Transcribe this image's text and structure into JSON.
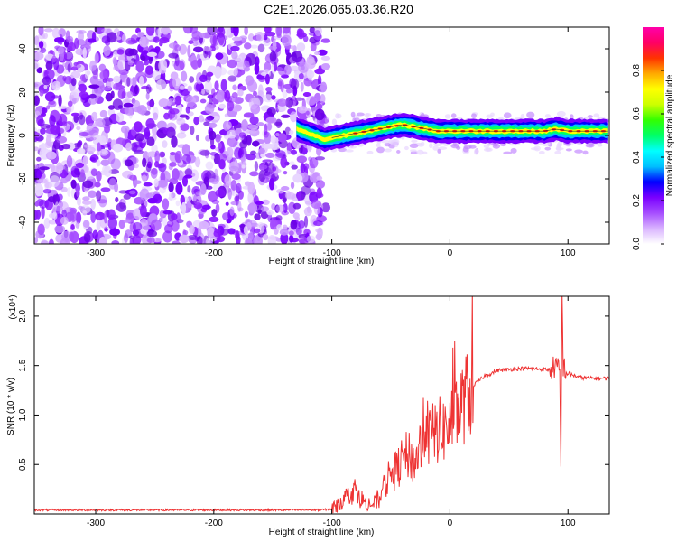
{
  "page_title": "C2E1.2026.065.03.36.R20",
  "chart_data": [
    {
      "type": "heatmap",
      "title": "C2E1.2026.065.03.36.R20",
      "xlabel": "Height of straight line (km)",
      "ylabel": "Frequency (Hz)",
      "xlim": [
        -352,
        135
      ],
      "ylim": [
        -50,
        50
      ],
      "x_ticks": [
        -300,
        -200,
        -100,
        0,
        100
      ],
      "y_ticks": [
        -40,
        -20,
        0,
        20,
        40
      ],
      "colorbar": {
        "label": "Normalized spectral amplitude",
        "range": [
          0,
          1
        ],
        "ticks": [
          "0.0",
          "0.2",
          "0.4",
          "0.6",
          "0.8"
        ],
        "colors": [
          "#ffffff",
          "#d9b3ff",
          "#a64dff",
          "#7a00ff",
          "#0000ff",
          "#00bfff",
          "#00ffff",
          "#00ff66",
          "#33ff00",
          "#ccff00",
          "#ffff00",
          "#ffaa00",
          "#ff3300",
          "#ff0066",
          "#ff00aa"
        ]
      },
      "ridge": {
        "x": [
          -130,
          -115,
          -105,
          -100,
          -90,
          -80,
          -70,
          -60,
          -50,
          -40,
          -30,
          -20,
          -10,
          0,
          10,
          20,
          40,
          60,
          80,
          90,
          100,
          110,
          120,
          135
        ],
        "y": [
          3,
          0,
          -2,
          -1,
          0,
          1,
          2,
          3,
          4,
          5,
          4,
          3,
          2,
          2,
          2,
          2,
          2,
          2,
          2,
          3,
          2,
          2,
          2,
          2
        ]
      },
      "grid": false
    },
    {
      "type": "line",
      "xlabel": "Height of straight line (km)",
      "ylabel": "SNR (10 * v/v)",
      "y_multiplier": "(x10⁴)",
      "xlim": [
        -352,
        135
      ],
      "ylim": [
        0,
        2.2
      ],
      "x_ticks": [
        -300,
        -200,
        -100,
        0,
        100
      ],
      "y_ticks": [
        0.5,
        1.0,
        1.5,
        2.0
      ],
      "y_tick_labels": [
        "0.5",
        "1.0",
        "1.5",
        "2.0"
      ],
      "color": "#ee3333",
      "series": [
        {
          "x": [
            -352,
            -300,
            -200,
            -110,
            -100,
            -95,
            -90,
            -85,
            -80,
            -75,
            -70,
            -65,
            -60,
            -55,
            -50,
            -45,
            -40,
            -35,
            -30,
            -25,
            -20,
            -15,
            -10,
            -5,
            0,
            5,
            10,
            15,
            20,
            25,
            30,
            35,
            40,
            50,
            60,
            70,
            80,
            85,
            88,
            90,
            92,
            93,
            94,
            95,
            96,
            98,
            100,
            105,
            110,
            120,
            135
          ],
          "y": [
            0.04,
            0.04,
            0.04,
            0.04,
            0.05,
            0.1,
            0.15,
            0.2,
            0.25,
            0.15,
            0.1,
            0.1,
            0.15,
            0.3,
            0.4,
            0.45,
            0.55,
            0.6,
            0.5,
            0.7,
            0.75,
            0.8,
            0.85,
            0.85,
            0.9,
            1.0,
            1.1,
            1.2,
            1.3,
            1.35,
            1.4,
            1.42,
            1.45,
            1.46,
            1.47,
            1.47,
            1.46,
            1.46,
            1.48,
            1.5,
            1.45,
            1.4,
            0.5,
            2.2,
            1.5,
            1.45,
            1.42,
            1.4,
            1.38,
            1.37,
            1.37
          ]
        }
      ],
      "grid": false
    }
  ]
}
